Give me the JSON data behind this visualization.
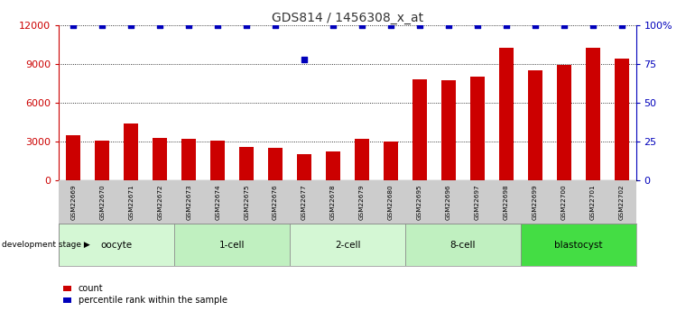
{
  "title": "GDS814 / 1456308_x_at",
  "samples": [
    "GSM22669",
    "GSM22670",
    "GSM22671",
    "GSM22672",
    "GSM22673",
    "GSM22674",
    "GSM22675",
    "GSM22676",
    "GSM22677",
    "GSM22678",
    "GSM22679",
    "GSM22680",
    "GSM22695",
    "GSM22696",
    "GSM22697",
    "GSM22698",
    "GSM22699",
    "GSM22700",
    "GSM22701",
    "GSM22702"
  ],
  "counts": [
    3500,
    3100,
    4400,
    3300,
    3200,
    3100,
    2600,
    2500,
    2000,
    2200,
    3200,
    3000,
    7800,
    7700,
    8000,
    10200,
    8500,
    8900,
    10200,
    9400
  ],
  "percentiles": [
    100,
    100,
    100,
    100,
    100,
    100,
    100,
    100,
    78,
    100,
    100,
    100,
    100,
    100,
    100,
    100,
    100,
    100,
    100,
    100
  ],
  "groups": [
    {
      "label": "oocyte",
      "start": 0,
      "end": 4,
      "color": "#d4f7d4"
    },
    {
      "label": "1-cell",
      "start": 4,
      "end": 8,
      "color": "#c0f0c0"
    },
    {
      "label": "2-cell",
      "start": 8,
      "end": 12,
      "color": "#d4f7d4"
    },
    {
      "label": "8-cell",
      "start": 12,
      "end": 16,
      "color": "#c0f0c0"
    },
    {
      "label": "blastocyst",
      "start": 16,
      "end": 20,
      "color": "#44dd44"
    }
  ],
  "bar_color": "#cc0000",
  "dot_color": "#0000bb",
  "left_axis_color": "#cc0000",
  "right_axis_color": "#0000bb",
  "ylim_left": [
    0,
    12000
  ],
  "ylim_right": [
    0,
    100
  ],
  "yticks_left": [
    0,
    3000,
    6000,
    9000,
    12000
  ],
  "yticks_right": [
    0,
    25,
    50,
    75,
    100
  ],
  "background_color": "#ffffff",
  "sample_label_bg": "#cccccc",
  "legend_count_label": "count",
  "legend_pct_label": "percentile rank within the sample",
  "dev_stage_label": "development stage"
}
